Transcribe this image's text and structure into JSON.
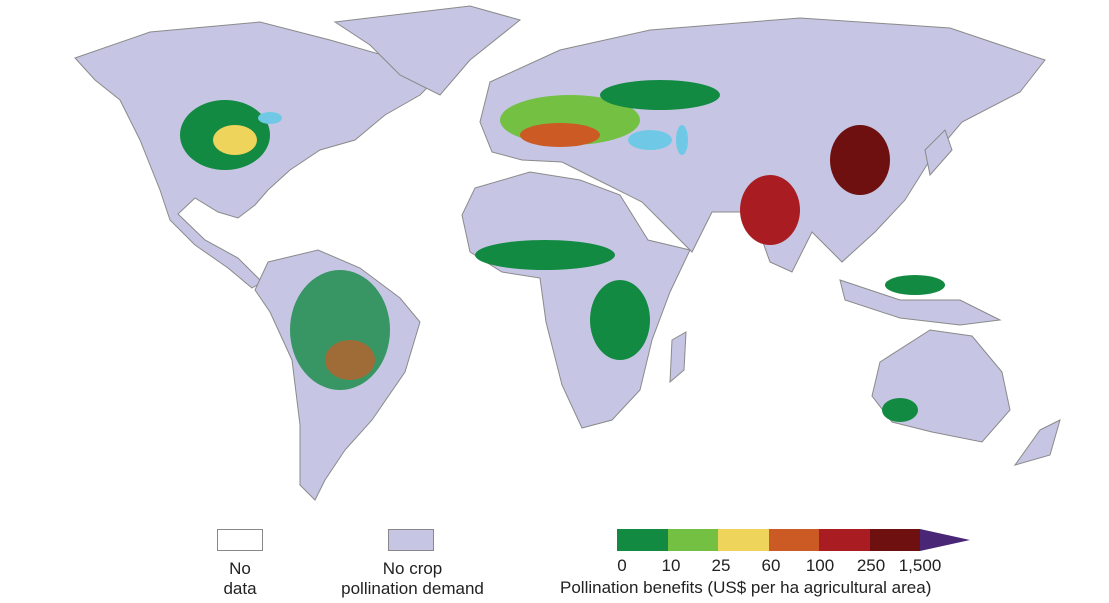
{
  "legend": {
    "no_data": {
      "label_line1": "No",
      "label_line2": "data",
      "color": "#ffffff"
    },
    "no_demand": {
      "label_line1": "No crop",
      "label_line2": "pollination demand",
      "color": "#c6c6e4"
    },
    "scale": {
      "title": "Pollination benefits (US$ per ha agricultural area)",
      "ticks": [
        "0",
        "10",
        "25",
        "60",
        "100",
        "250",
        "1,500"
      ],
      "colors": [
        "#138a42",
        "#73c043",
        "#eed45a",
        "#cc5a25",
        "#a91d22",
        "#6e1010"
      ],
      "overflow_color": "#4a2676"
    }
  },
  "colors": {
    "land": "#c6c6e4",
    "water_bodies": "#6fc9e6"
  }
}
